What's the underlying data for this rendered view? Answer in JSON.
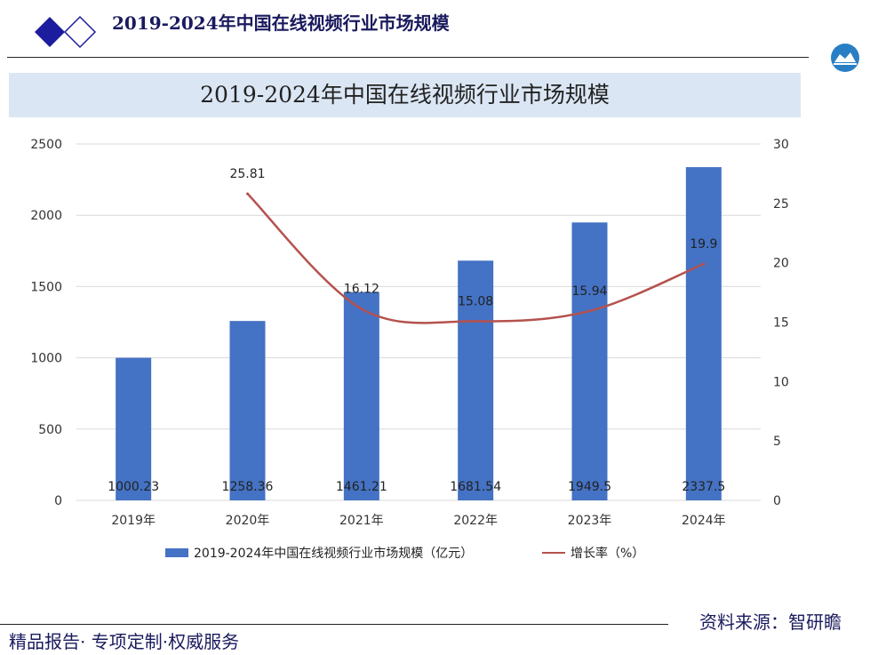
{
  "header": {
    "title": "2019-2024年中国在线视频行业市场规模"
  },
  "chart_data": {
    "type": "bar+line",
    "title": "2019-2024年中国在线视频行业市场规模",
    "categories": [
      "2019年",
      "2020年",
      "2021年",
      "2022年",
      "2023年",
      "2024年"
    ],
    "series": [
      {
        "name": "2019-2024年中国在线视频行业市场规模（亿元）",
        "type": "bar",
        "axis": "left",
        "values": [
          1000.23,
          1258.36,
          1461.21,
          1681.54,
          1949.5,
          2337.5
        ],
        "labels": [
          "1000.23",
          "1258.36",
          "1461.21",
          "1681.54",
          "1949.5",
          "2337.5"
        ]
      },
      {
        "name": "增长率（%）",
        "type": "line",
        "axis": "right",
        "values": [
          null,
          25.81,
          16.12,
          15.08,
          15.94,
          19.9
        ],
        "labels": [
          "",
          "25.81",
          "16.12",
          "15.08",
          "15.94",
          "19.9"
        ]
      }
    ],
    "y_left": {
      "min": 0,
      "max": 2500,
      "ticks": [
        0,
        500,
        1000,
        1500,
        2000,
        2500
      ]
    },
    "y_right": {
      "min": 0,
      "max": 30,
      "ticks": [
        0,
        5,
        10,
        15,
        20,
        25,
        30
      ]
    },
    "grid": true,
    "legend_position": "bottom",
    "colors": {
      "bar": "#4472c4",
      "line": "#b5524e"
    }
  },
  "footer": {
    "left": "精品报告· 专项定制·权威服务",
    "right": "资料来源：智研瞻"
  }
}
